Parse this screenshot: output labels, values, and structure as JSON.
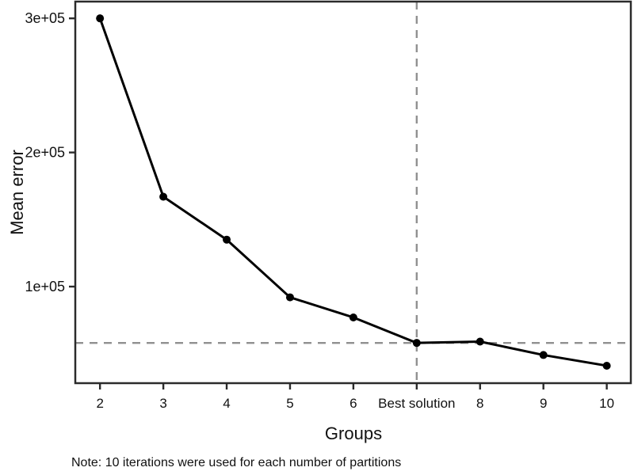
{
  "chart_data": {
    "type": "line",
    "title": "",
    "xlabel": "Groups",
    "ylabel": "Mean error",
    "note": "Note: 10 iterations were used for each number of partitions",
    "categories": [
      "2",
      "3",
      "4",
      "5",
      "6",
      "Best solution",
      "8",
      "9",
      "10"
    ],
    "x": [
      2,
      3,
      4,
      5,
      6,
      7,
      8,
      9,
      10
    ],
    "values": [
      300000,
      167000,
      135000,
      92000,
      77000,
      58000,
      59000,
      49000,
      41000
    ],
    "y_ticks": {
      "labels": [
        "3e+05",
        "2e+05",
        "1e+05"
      ],
      "values": [
        300000,
        200000,
        100000
      ]
    },
    "xlim": [
      1.61,
      10.38
    ],
    "ylim": [
      28000,
      312500
    ],
    "grid": false,
    "legend": false,
    "reference_lines": {
      "vertical_x": 7,
      "horizontal_y": 58000,
      "style": "dashed"
    },
    "colors": {
      "line": "#000000",
      "point": "#000000",
      "reference": "#909090",
      "panel_border": "#2b2b2b",
      "text": "#111111",
      "background": "#ffffff"
    }
  }
}
